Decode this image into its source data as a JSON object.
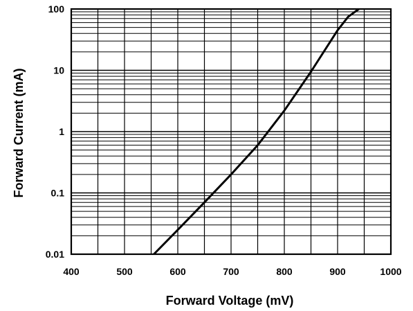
{
  "chart_data": {
    "type": "line",
    "title": "",
    "xlabel": "Forward Voltage (mV)",
    "ylabel": "Forward Current (mA)",
    "xlim": [
      400,
      1000
    ],
    "ylim": [
      0.01,
      100
    ],
    "yscale": "log",
    "grid": true,
    "x_ticks": [
      400,
      500,
      600,
      700,
      800,
      900,
      1000
    ],
    "x_tick_labels": [
      "400",
      "500",
      "600",
      "700",
      "800",
      "900",
      "1000"
    ],
    "y_ticks": [
      0.01,
      0.1,
      1,
      10,
      100
    ],
    "y_tick_labels": [
      "0.01",
      "0.1",
      "1",
      "10",
      "100"
    ],
    "series": [
      {
        "x": [
          555,
          600,
          650,
          700,
          750,
          800,
          850,
          900,
          920,
          940
        ],
        "y": [
          0.01,
          0.025,
          0.07,
          0.2,
          0.6,
          2.2,
          9.5,
          45,
          75,
          100
        ]
      }
    ]
  }
}
